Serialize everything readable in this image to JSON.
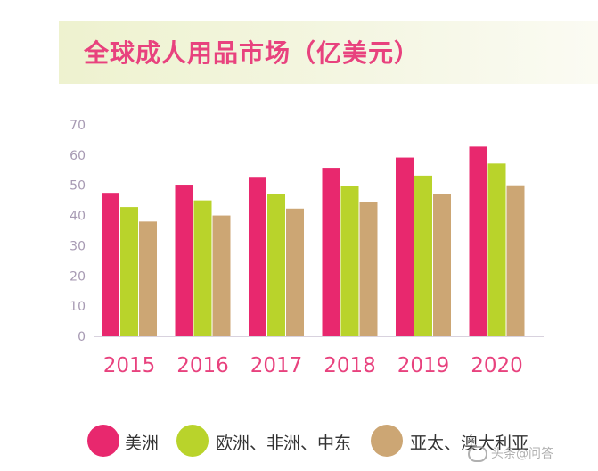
{
  "title": "全球成人用品市场（亿美元）",
  "watermark": "头条@问答",
  "chart_data": {
    "type": "bar",
    "title": "全球成人用品市场（亿美元）",
    "categories": [
      "2015",
      "2016",
      "2017",
      "2018",
      "2019",
      "2020"
    ],
    "ylim": [
      0,
      70
    ],
    "yticks": [
      0,
      10,
      20,
      30,
      40,
      50,
      60,
      70
    ],
    "grid": false,
    "legend_position": "bottom",
    "series": [
      {
        "name": "美洲",
        "color": "#e8286e",
        "values": [
          47.5,
          50.2,
          52.8,
          55.8,
          59.2,
          62.8
        ]
      },
      {
        "name": "欧洲、非洲、中东",
        "color": "#b9d32b",
        "values": [
          42.8,
          45,
          47,
          49.8,
          53.2,
          57.2
        ]
      },
      {
        "name": "亚太、澳大利亚",
        "color": "#cca674",
        "values": [
          38,
          40,
          42.3,
          44.5,
          47,
          50
        ]
      }
    ]
  }
}
